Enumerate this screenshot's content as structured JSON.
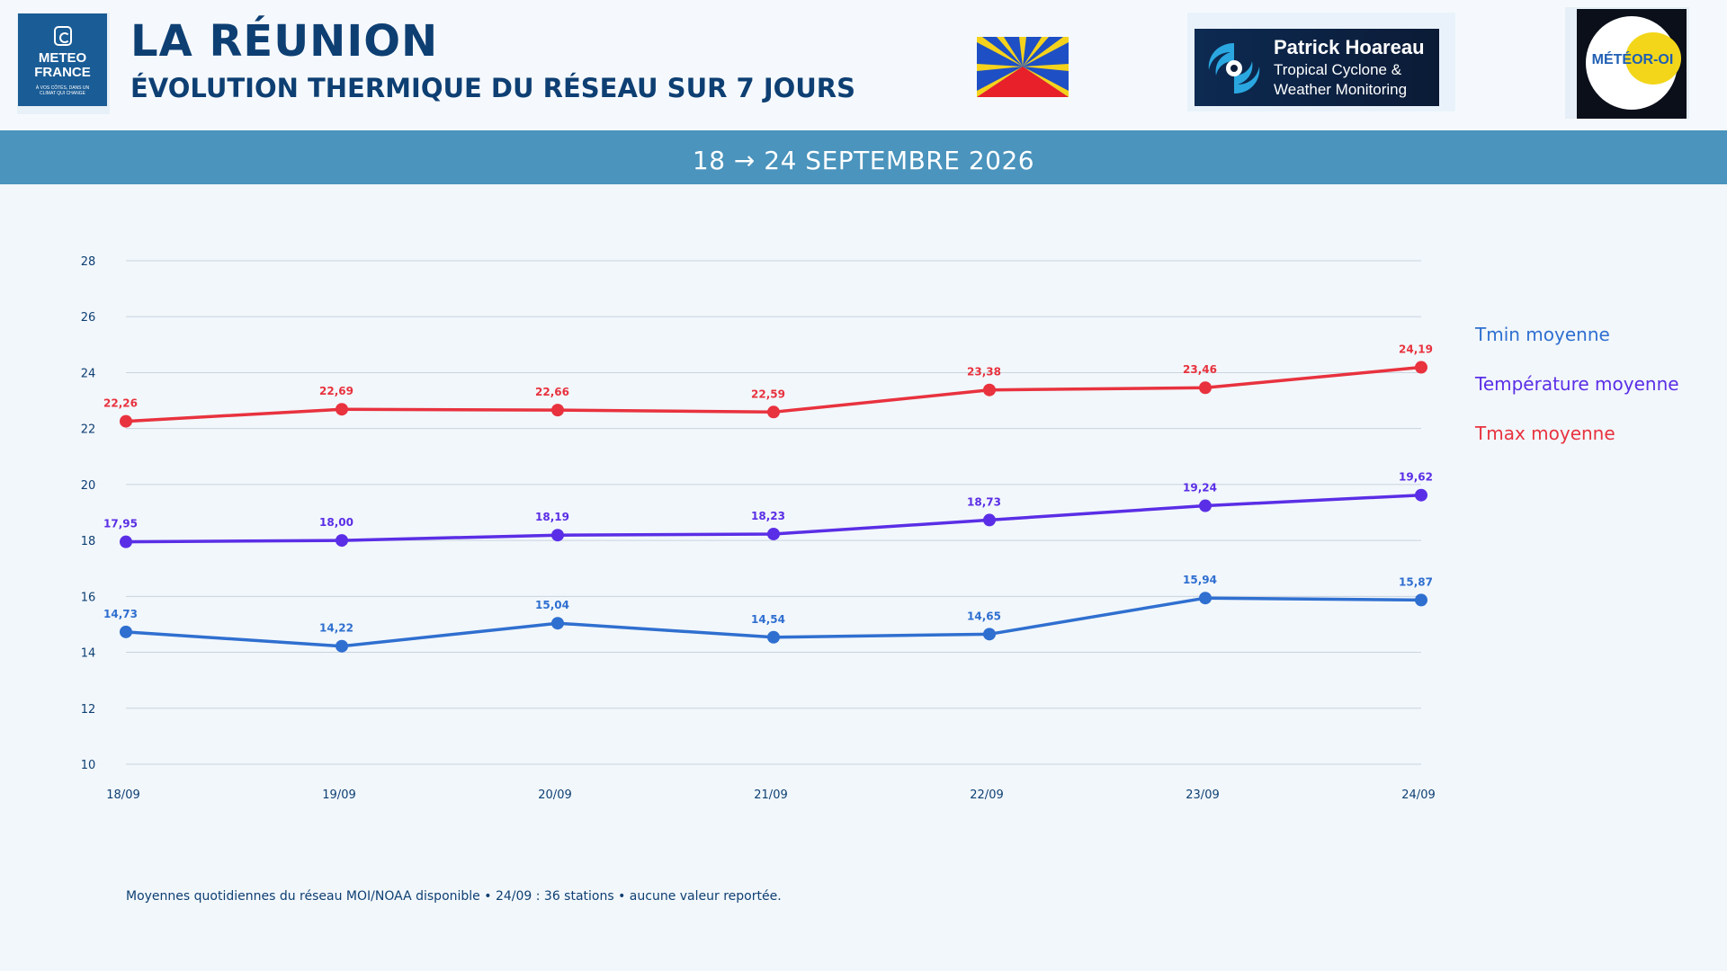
{
  "header": {
    "title": "LA RÉUNION",
    "subtitle": "ÉVOLUTION THERMIQUE DU RÉSEAU SUR 7 JOURS",
    "logos": {
      "meteo_france": {
        "line1": "METEO",
        "line2": "FRANCE",
        "tagline": "À VOS CÔTÉS, DANS UN CLIMAT QUI CHANGE"
      },
      "patrick_hoareau": {
        "name": "Patrick Hoareau",
        "line2": "Tropical Cyclone &",
        "line3": "Weather Monitoring"
      },
      "meteo_oi": {
        "text": "MÉTÉOR-OI"
      }
    }
  },
  "band": {
    "text": "18 → 24 SEPTEMBRE 2026"
  },
  "colors": {
    "tmin": "#2f6fd0",
    "tmoy": "#5a2ee6",
    "tmax": "#e8323e",
    "grid": "#c8d4df",
    "text": "#0e3f73"
  },
  "chart_data": {
    "type": "line",
    "categories": [
      "18/09",
      "19/09",
      "20/09",
      "21/09",
      "22/09",
      "23/09",
      "24/09"
    ],
    "ylim": [
      10,
      28
    ],
    "yticks": [
      10,
      12,
      14,
      16,
      18,
      20,
      22,
      24,
      26,
      28
    ],
    "grid": true,
    "legend_position": "right",
    "series": [
      {
        "key": "tmin",
        "name": "Tmin moyenne",
        "values": [
          14.73,
          14.22,
          15.04,
          14.54,
          14.65,
          15.94,
          15.87
        ],
        "labels": [
          "14,73",
          "14,22",
          "15,04",
          "14,54",
          "14,65",
          "15,94",
          "15,87"
        ]
      },
      {
        "key": "tmoy",
        "name": "Température moyenne",
        "values": [
          17.95,
          18.0,
          18.19,
          18.23,
          18.73,
          19.24,
          19.62
        ],
        "labels": [
          "17,95",
          "18,00",
          "18,19",
          "18,23",
          "18,73",
          "19,24",
          "19,62"
        ]
      },
      {
        "key": "tmax",
        "name": "Tmax moyenne",
        "values": [
          22.26,
          22.69,
          22.66,
          22.59,
          23.38,
          23.46,
          24.19
        ],
        "labels": [
          "22,26",
          "22,69",
          "22,66",
          "22,59",
          "23,38",
          "23,46",
          "24,19"
        ]
      }
    ]
  },
  "footnote": "Moyennes quotidiennes du réseau MOI/NOAA disponible • 24/09 : 36 stations • aucune valeur reportée."
}
